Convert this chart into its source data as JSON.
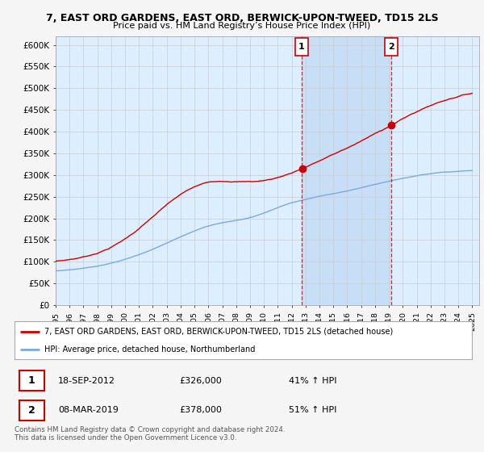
{
  "title": "7, EAST ORD GARDENS, EAST ORD, BERWICK-UPON-TWEED, TD15 2LS",
  "subtitle": "Price paid vs. HM Land Registry’s House Price Index (HPI)",
  "ylim": [
    0,
    620000
  ],
  "yticks": [
    0,
    50000,
    100000,
    150000,
    200000,
    250000,
    300000,
    350000,
    400000,
    450000,
    500000,
    550000,
    600000
  ],
  "ytick_labels": [
    "£0",
    "£50K",
    "£100K",
    "£150K",
    "£200K",
    "£250K",
    "£300K",
    "£350K",
    "£400K",
    "£450K",
    "£500K",
    "£550K",
    "£600K"
  ],
  "marker1_date": 2012.72,
  "marker2_date": 2019.18,
  "legend_house_label": "7, EAST ORD GARDENS, EAST ORD, BERWICK-UPON-TWEED, TD15 2LS (detached house)",
  "legend_hpi_label": "HPI: Average price, detached house, Northumberland",
  "table_row1": [
    "1",
    "18-SEP-2012",
    "£326,000",
    "41% ↑ HPI"
  ],
  "table_row2": [
    "2",
    "08-MAR-2019",
    "£378,000",
    "51% ↑ HPI"
  ],
  "footnote": "Contains HM Land Registry data © Crown copyright and database right 2024.\nThis data is licensed under the Open Government Licence v3.0.",
  "house_color": "#cc0000",
  "hpi_color": "#7aaadd",
  "background_color": "#ddeeff",
  "shaded_color": "#c5daf5",
  "marker_color": "#cc0000",
  "grid_color": "#cccccc",
  "fig_bg": "#f5f5f5"
}
